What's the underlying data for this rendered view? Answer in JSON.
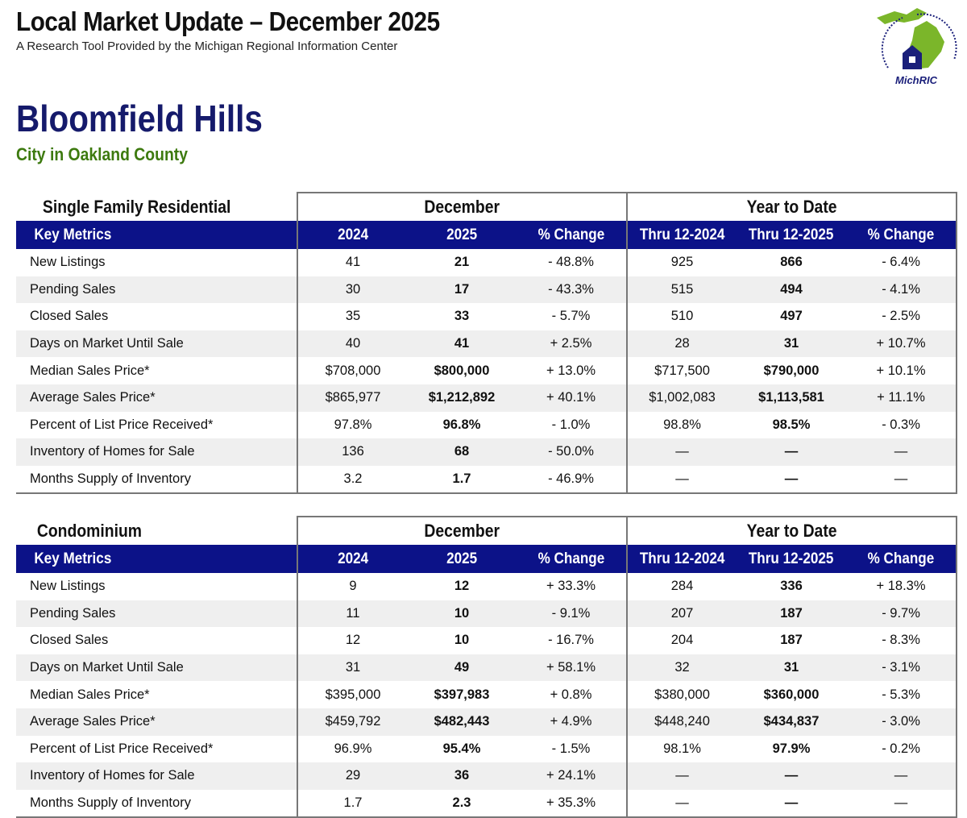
{
  "header": {
    "title": "Local Market Update – December 2025",
    "subtitle": "A Research Tool Provided by the Michigan Regional Information Center",
    "logo_text": "MichRIC",
    "logo_ring_text": "Michigan Regional Information Center"
  },
  "location": {
    "name": "Bloomfield Hills",
    "type": "City in Oakland County"
  },
  "colors": {
    "header_blue": "#0c1288",
    "title_blue": "#151a6b",
    "county_green": "#3d7a0f"
  },
  "tables": [
    {
      "section": "Single Family Residential",
      "group_month": "December",
      "group_ytd": "Year to Date",
      "columns": [
        "Key Metrics",
        "2024",
        "2025",
        "% Change",
        "Thru 12-2024",
        "Thru 12-2025",
        "% Change"
      ],
      "rows": [
        [
          "New Listings",
          "41",
          "21",
          "- 48.8%",
          "925",
          "866",
          "- 6.4%"
        ],
        [
          "Pending Sales",
          "30",
          "17",
          "- 43.3%",
          "515",
          "494",
          "- 4.1%"
        ],
        [
          "Closed Sales",
          "35",
          "33",
          "- 5.7%",
          "510",
          "497",
          "- 2.5%"
        ],
        [
          "Days on Market Until Sale",
          "40",
          "41",
          "+ 2.5%",
          "28",
          "31",
          "+ 10.7%"
        ],
        [
          "Median Sales Price*",
          "$708,000",
          "$800,000",
          "+ 13.0%",
          "$717,500",
          "$790,000",
          "+ 10.1%"
        ],
        [
          "Average Sales Price*",
          "$865,977",
          "$1,212,892",
          "+ 40.1%",
          "$1,002,083",
          "$1,113,581",
          "+ 11.1%"
        ],
        [
          "Percent of List Price Received*",
          "97.8%",
          "96.8%",
          "- 1.0%",
          "98.8%",
          "98.5%",
          "- 0.3%"
        ],
        [
          "Inventory of Homes for Sale",
          "136",
          "68",
          "- 50.0%",
          "—",
          "—",
          "—"
        ],
        [
          "Months Supply of Inventory",
          "3.2",
          "1.7",
          "- 46.9%",
          "—",
          "—",
          "—"
        ]
      ]
    },
    {
      "section": "Condominium",
      "group_month": "December",
      "group_ytd": "Year to Date",
      "columns": [
        "Key Metrics",
        "2024",
        "2025",
        "% Change",
        "Thru 12-2024",
        "Thru 12-2025",
        "% Change"
      ],
      "rows": [
        [
          "New Listings",
          "9",
          "12",
          "+ 33.3%",
          "284",
          "336",
          "+ 18.3%"
        ],
        [
          "Pending Sales",
          "11",
          "10",
          "- 9.1%",
          "207",
          "187",
          "- 9.7%"
        ],
        [
          "Closed Sales",
          "12",
          "10",
          "- 16.7%",
          "204",
          "187",
          "- 8.3%"
        ],
        [
          "Days on Market Until Sale",
          "31",
          "49",
          "+ 58.1%",
          "32",
          "31",
          "- 3.1%"
        ],
        [
          "Median Sales Price*",
          "$395,000",
          "$397,983",
          "+ 0.8%",
          "$380,000",
          "$360,000",
          "- 5.3%"
        ],
        [
          "Average Sales Price*",
          "$459,792",
          "$482,443",
          "+ 4.9%",
          "$448,240",
          "$434,837",
          "- 3.0%"
        ],
        [
          "Percent of List Price Received*",
          "96.9%",
          "95.4%",
          "- 1.5%",
          "98.1%",
          "97.9%",
          "- 0.2%"
        ],
        [
          "Inventory of Homes for Sale",
          "29",
          "36",
          "+ 24.1%",
          "—",
          "—",
          "—"
        ],
        [
          "Months Supply of Inventory",
          "1.7",
          "2.3",
          "+ 35.3%",
          "—",
          "—",
          "—"
        ]
      ]
    }
  ]
}
